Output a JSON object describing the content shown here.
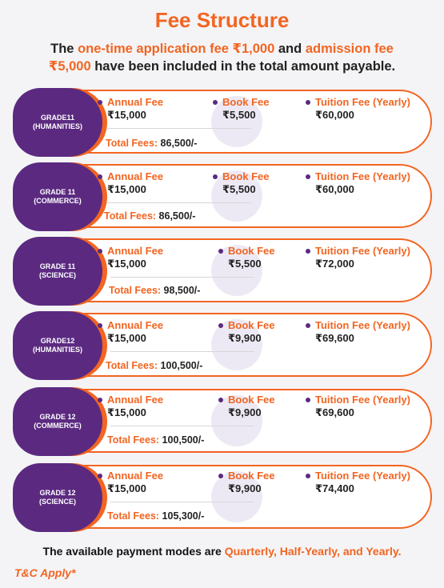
{
  "title": "Fee Structure",
  "intro": {
    "line1_a": "The ",
    "line1_b": "one-time application fee ₹1,000",
    "line1_c": " and ",
    "line1_d": "admission fee",
    "line2_a": "₹5,000",
    "line2_b": " have been included in the total amount payable."
  },
  "cards": [
    {
      "grade": "GRADE11\n(HUMANITIES)",
      "annual_label": "Annual Fee",
      "annual_value": "₹15,000",
      "book_label": "Book Fee",
      "book_value": "₹5,500",
      "tuition_label": "Tuition Fee (Yearly)",
      "tuition_value": "₹60,000",
      "total_label": "Total Fees:",
      "total_value": "86,500/-"
    },
    {
      "grade": "GRADE 11\n(COMMERCE)",
      "annual_label": "Annual Fee",
      "annual_value": "₹15,000",
      "book_label": "Book Fee",
      "book_value": "₹5,500",
      "tuition_label": "Tuition Fee (Yearly)",
      "tuition_value": "₹60,000",
      "total_label": "Total Fees:",
      "total_value": "86,500/-"
    },
    {
      "grade": "GRADE 11\n(SCIENCE)",
      "annual_label": "Annual Fee",
      "annual_value": "₹15,000",
      "book_label": "Book Fee",
      "book_value": "₹5,500",
      "tuition_label": "Tuition Fee (Yearly)",
      "tuition_value": "₹72,000",
      "total_label": "Total Fees:",
      "total_value": "98,500/-"
    },
    {
      "grade": "GRADE12\n(HUMANITIES)",
      "annual_label": "Annual Fee",
      "annual_value": "₹15,000",
      "book_label": "Book Fee",
      "book_value": "₹9,900",
      "tuition_label": "Tuition Fee (Yearly)",
      "tuition_value": "₹69,600",
      "total_label": "Total Fees:",
      "total_value": "100,500/-"
    },
    {
      "grade": "GRADE 12\n(COMMERCE)",
      "annual_label": "Annual Fee",
      "annual_value": "₹15,000",
      "book_label": "Book Fee",
      "book_value": "₹9,900",
      "tuition_label": "Tuition Fee (Yearly)",
      "tuition_value": "₹69,600",
      "total_label": "Total Fees:",
      "total_value": "100,500/-"
    },
    {
      "grade": "GRADE 12\n(SCIENCE)",
      "annual_label": "Annual Fee",
      "annual_value": "₹15,000",
      "book_label": "Book Fee",
      "book_value": "₹9,900",
      "tuition_label": "Tuition Fee (Yearly)",
      "tuition_value": "₹74,400",
      "total_label": "Total Fees:",
      "total_value": "105,300/-"
    }
  ],
  "footer": {
    "text_a": "The available payment modes are ",
    "text_b": "Quarterly, Half-Yearly, and Yearly."
  },
  "tc": "T&C Apply*",
  "colors": {
    "accent": "#f26522",
    "purple": "#5b2a80"
  }
}
